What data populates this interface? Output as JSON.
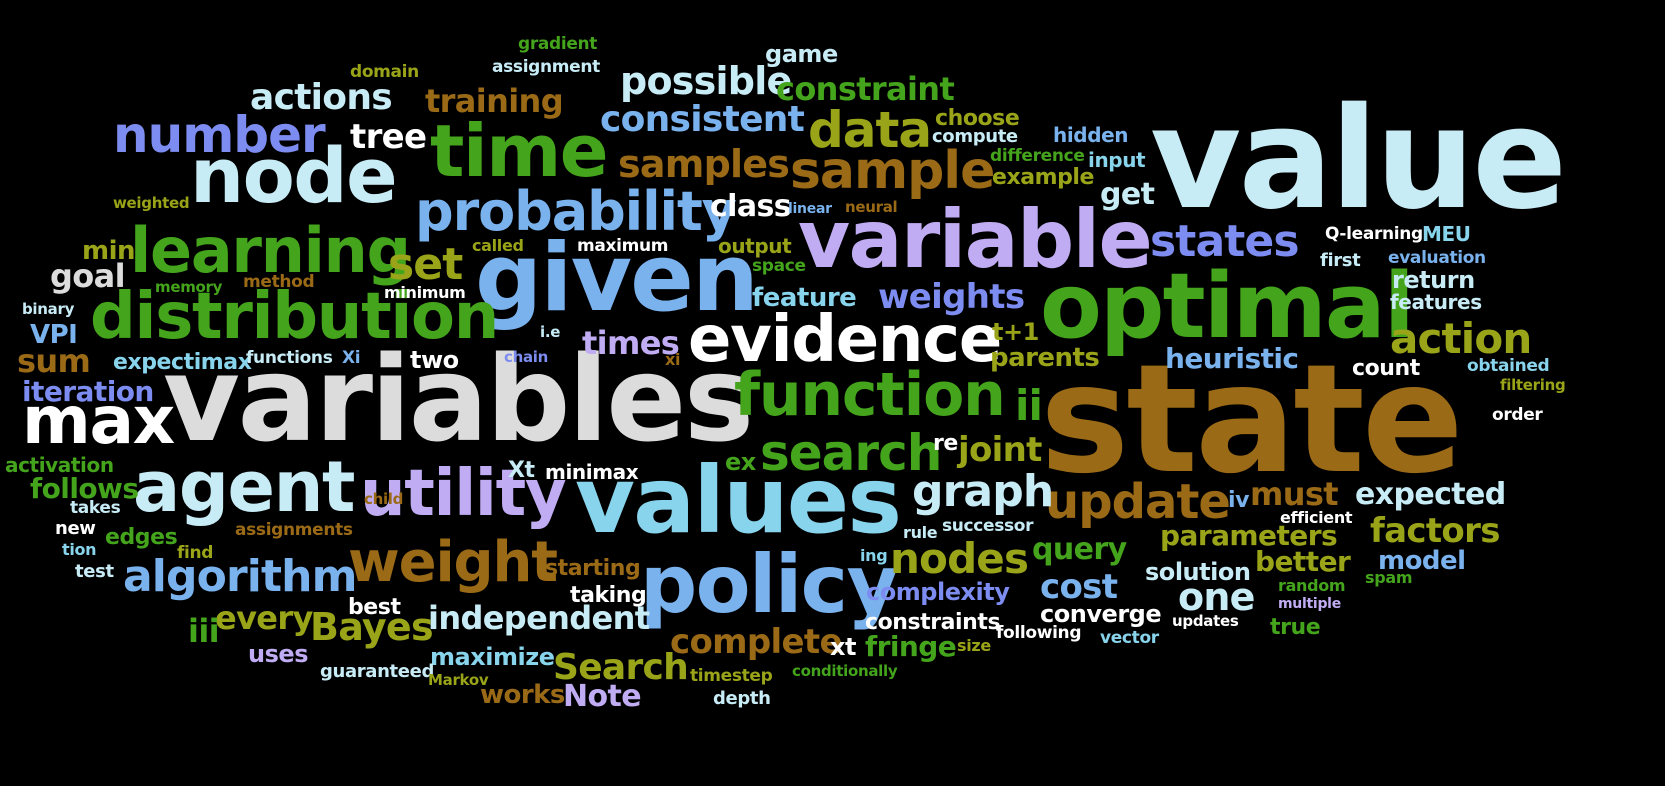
{
  "palette": {
    "background": "#000000",
    "lightblue": "#c8ecf6",
    "cyan": "#88d4ec",
    "skyblue": "#7ab2ee",
    "periwinkle": "#7d8cf0",
    "lavender": "#c0acf2",
    "green": "#44a41c",
    "olive": "#9aa418",
    "brown": "#9b6a16",
    "white": "#ffffff",
    "lightgray": "#dcdcdc"
  },
  "words": [
    {
      "text": "value",
      "color": "#c8ecf6"
    },
    {
      "text": "state",
      "color": "#9b6a16"
    },
    {
      "text": "variables",
      "color": "#dcdcdc"
    },
    {
      "text": "given",
      "color": "#7ab2ee"
    },
    {
      "text": "variable",
      "color": "#c0acf2"
    },
    {
      "text": "optimal",
      "color": "#44a41c"
    },
    {
      "text": "values",
      "color": "#88d4ec"
    },
    {
      "text": "node",
      "color": "#c8ecf6"
    },
    {
      "text": "time",
      "color": "#44a41c"
    },
    {
      "text": "distribution",
      "color": "#44a41c"
    },
    {
      "text": "policy",
      "color": "#7ab2ee"
    },
    {
      "text": "evidence",
      "color": "#ffffff"
    },
    {
      "text": "agent",
      "color": "#c8ecf6"
    },
    {
      "text": "utility",
      "color": "#c0acf2"
    },
    {
      "text": "function",
      "color": "#44a41c"
    },
    {
      "text": "probability",
      "color": "#7ab2ee"
    },
    {
      "text": "learning",
      "color": "#44a41c"
    },
    {
      "text": "max",
      "color": "#ffffff"
    },
    {
      "text": "number",
      "color": "#7d8cf0"
    },
    {
      "text": "sample",
      "color": "#9b6a16"
    },
    {
      "text": "weight",
      "color": "#9b6a16"
    },
    {
      "text": "data",
      "color": "#9aa418"
    },
    {
      "text": "search",
      "color": "#44a41c"
    },
    {
      "text": "states",
      "color": "#7d8cf0"
    },
    {
      "text": "algorithm",
      "color": "#7ab2ee"
    },
    {
      "text": "update",
      "color": "#9b6a16"
    },
    {
      "text": "action",
      "color": "#9aa418"
    },
    {
      "text": "graph",
      "color": "#c8ecf6"
    },
    {
      "text": "nodes",
      "color": "#9aa418"
    },
    {
      "text": "possible",
      "color": "#c8ecf6"
    },
    {
      "text": "consistent",
      "color": "#7ab2ee"
    },
    {
      "text": "samples",
      "color": "#9b6a16"
    },
    {
      "text": "actions",
      "color": "#c8ecf6"
    },
    {
      "text": "complete",
      "color": "#9b6a16"
    },
    {
      "text": "Bayes",
      "color": "#9aa418"
    },
    {
      "text": "Search",
      "color": "#9aa418"
    },
    {
      "text": "set",
      "color": "#9aa418"
    },
    {
      "text": "independent",
      "color": "#c8ecf6"
    },
    {
      "text": "factors",
      "color": "#9aa418"
    },
    {
      "text": "expected",
      "color": "#c8ecf6"
    },
    {
      "text": "weights",
      "color": "#7d8cf0"
    },
    {
      "text": "constraint",
      "color": "#44a41c"
    },
    {
      "text": "training",
      "color": "#9b6a16"
    },
    {
      "text": "tree",
      "color": "#ffffff"
    },
    {
      "text": "cost",
      "color": "#7ab2ee"
    },
    {
      "text": "one",
      "color": "#c8ecf6"
    },
    {
      "text": "times",
      "color": "#c0acf2"
    },
    {
      "text": "sum",
      "color": "#9b6a16"
    },
    {
      "text": "goal",
      "color": "#dcdcdc"
    },
    {
      "text": "min",
      "color": "#9aa418"
    },
    {
      "text": "ii",
      "color": "#44a41c"
    },
    {
      "text": "must",
      "color": "#9b6a16"
    },
    {
      "text": "joint",
      "color": "#9aa418"
    },
    {
      "text": "parameters",
      "color": "#9aa418"
    },
    {
      "text": "heuristic",
      "color": "#7ab2ee"
    },
    {
      "text": "iteration",
      "color": "#7d8cf0"
    },
    {
      "text": "follows",
      "color": "#44a41c"
    },
    {
      "text": "query",
      "color": "#44a41c"
    },
    {
      "text": "feature",
      "color": "#88d4ec"
    },
    {
      "text": "maximize",
      "color": "#88d4ec"
    },
    {
      "text": "every",
      "color": "#9aa418"
    },
    {
      "text": "complexity",
      "color": "#7d8cf0"
    },
    {
      "text": "better",
      "color": "#9aa418"
    },
    {
      "text": "class",
      "color": "#ffffff"
    },
    {
      "text": "get",
      "color": "#c8ecf6"
    },
    {
      "text": "Note",
      "color": "#c0acf2"
    },
    {
      "text": "works",
      "color": "#9b6a16"
    },
    {
      "text": "solution",
      "color": "#c8ecf6"
    },
    {
      "text": "model",
      "color": "#7ab2ee"
    },
    {
      "text": "parents",
      "color": "#9aa418"
    },
    {
      "text": "fringe",
      "color": "#44a41c"
    },
    {
      "text": "game",
      "color": "#c8ecf6"
    },
    {
      "text": "ex",
      "color": "#44a41c"
    },
    {
      "text": "iii",
      "color": "#44a41c"
    },
    {
      "text": "VPI",
      "color": "#7ab2ee"
    },
    {
      "text": "converge",
      "color": "#ffffff"
    },
    {
      "text": "constraints",
      "color": "#ffffff"
    },
    {
      "text": "two",
      "color": "#ffffff"
    },
    {
      "text": "t+1",
      "color": "#9aa418"
    },
    {
      "text": "xt",
      "color": "#ffffff"
    },
    {
      "text": "return",
      "color": "#c8ecf6"
    },
    {
      "text": "features",
      "color": "#c8ecf6"
    },
    {
      "text": "Xt",
      "color": "#c8ecf6"
    },
    {
      "text": "minimax",
      "color": "#ffffff"
    },
    {
      "text": "taking",
      "color": "#ffffff"
    },
    {
      "text": "starting",
      "color": "#9b6a16"
    },
    {
      "text": "edges",
      "color": "#44a41c"
    },
    {
      "text": "uses",
      "color": "#c0acf2"
    },
    {
      "text": "best",
      "color": "#ffffff"
    },
    {
      "text": "expectimax",
      "color": "#88d4ec"
    },
    {
      "text": "choose",
      "color": "#9aa418"
    },
    {
      "text": "example",
      "color": "#9aa418"
    },
    {
      "text": "hidden",
      "color": "#7ab2ee"
    },
    {
      "text": "input",
      "color": "#88d4ec"
    },
    {
      "text": "count",
      "color": "#ffffff"
    },
    {
      "text": "activation",
      "color": "#44a41c"
    },
    {
      "text": "output",
      "color": "#9aa418"
    },
    {
      "text": "true",
      "color": "#44a41c"
    },
    {
      "text": "MEU",
      "color": "#88d4ec"
    },
    {
      "text": "re",
      "color": "#ffffff"
    },
    {
      "text": "compute",
      "color": "#c8ecf6"
    },
    {
      "text": "difference",
      "color": "#44a41c"
    },
    {
      "text": "maximum",
      "color": "#ffffff"
    },
    {
      "text": "guaranteed",
      "color": "#c8ecf6"
    },
    {
      "text": "timestep",
      "color": "#9aa418"
    },
    {
      "text": "depth",
      "color": "#c8ecf6"
    },
    {
      "text": "Q-learning",
      "color": "#ffffff"
    },
    {
      "text": "evaluation",
      "color": "#7ab2ee"
    },
    {
      "text": "first",
      "color": "#c8ecf6"
    },
    {
      "text": "obtained",
      "color": "#88d4ec"
    },
    {
      "text": "order",
      "color": "#ffffff"
    },
    {
      "text": "filtering",
      "color": "#9aa418"
    },
    {
      "text": "successor",
      "color": "#c8ecf6"
    },
    {
      "text": "efficient",
      "color": "#ffffff"
    },
    {
      "text": "random",
      "color": "#44a41c"
    },
    {
      "text": "spam",
      "color": "#44a41c"
    },
    {
      "text": "multiple",
      "color": "#c0acf2"
    },
    {
      "text": "updates",
      "color": "#ffffff"
    },
    {
      "text": "following",
      "color": "#ffffff"
    },
    {
      "text": "vector",
      "color": "#88d4ec"
    },
    {
      "text": "size",
      "color": "#9aa418"
    },
    {
      "text": "conditionally",
      "color": "#44a41c"
    },
    {
      "text": "rule",
      "color": "#c8ecf6"
    },
    {
      "text": "ing",
      "color": "#88d4ec"
    },
    {
      "text": "gradient",
      "color": "#44a41c"
    },
    {
      "text": "assignment",
      "color": "#c8ecf6"
    },
    {
      "text": "domain",
      "color": "#9aa418"
    },
    {
      "text": "weighted",
      "color": "#9aa418"
    },
    {
      "text": "called",
      "color": "#9aa418"
    },
    {
      "text": "memory",
      "color": "#44a41c"
    },
    {
      "text": "method",
      "color": "#9b6a16"
    },
    {
      "text": "minimum",
      "color": "#ffffff"
    },
    {
      "text": "binary",
      "color": "#c8ecf6"
    },
    {
      "text": "functions",
      "color": "#c8ecf6"
    },
    {
      "text": "Xi",
      "color": "#7ab2ee"
    },
    {
      "text": "chain",
      "color": "#7d8cf0"
    },
    {
      "text": "i.e",
      "color": "#c8ecf6"
    },
    {
      "text": "xi",
      "color": "#9b6a16"
    },
    {
      "text": "space",
      "color": "#44a41c"
    },
    {
      "text": "linear",
      "color": "#7ab2ee"
    },
    {
      "text": "neural",
      "color": "#9b6a16"
    },
    {
      "text": "child",
      "color": "#9b6a16"
    },
    {
      "text": "takes",
      "color": "#c8ecf6"
    },
    {
      "text": "new",
      "color": "#ffffff"
    },
    {
      "text": "tion",
      "color": "#88d4ec"
    },
    {
      "text": "test",
      "color": "#c8ecf6"
    },
    {
      "text": "assignments",
      "color": "#9b6a16"
    },
    {
      "text": "find",
      "color": "#9aa418"
    },
    {
      "text": "Markov",
      "color": "#9aa418"
    },
    {
      "text": "iv",
      "color": "#7ab2ee"
    }
  ]
}
